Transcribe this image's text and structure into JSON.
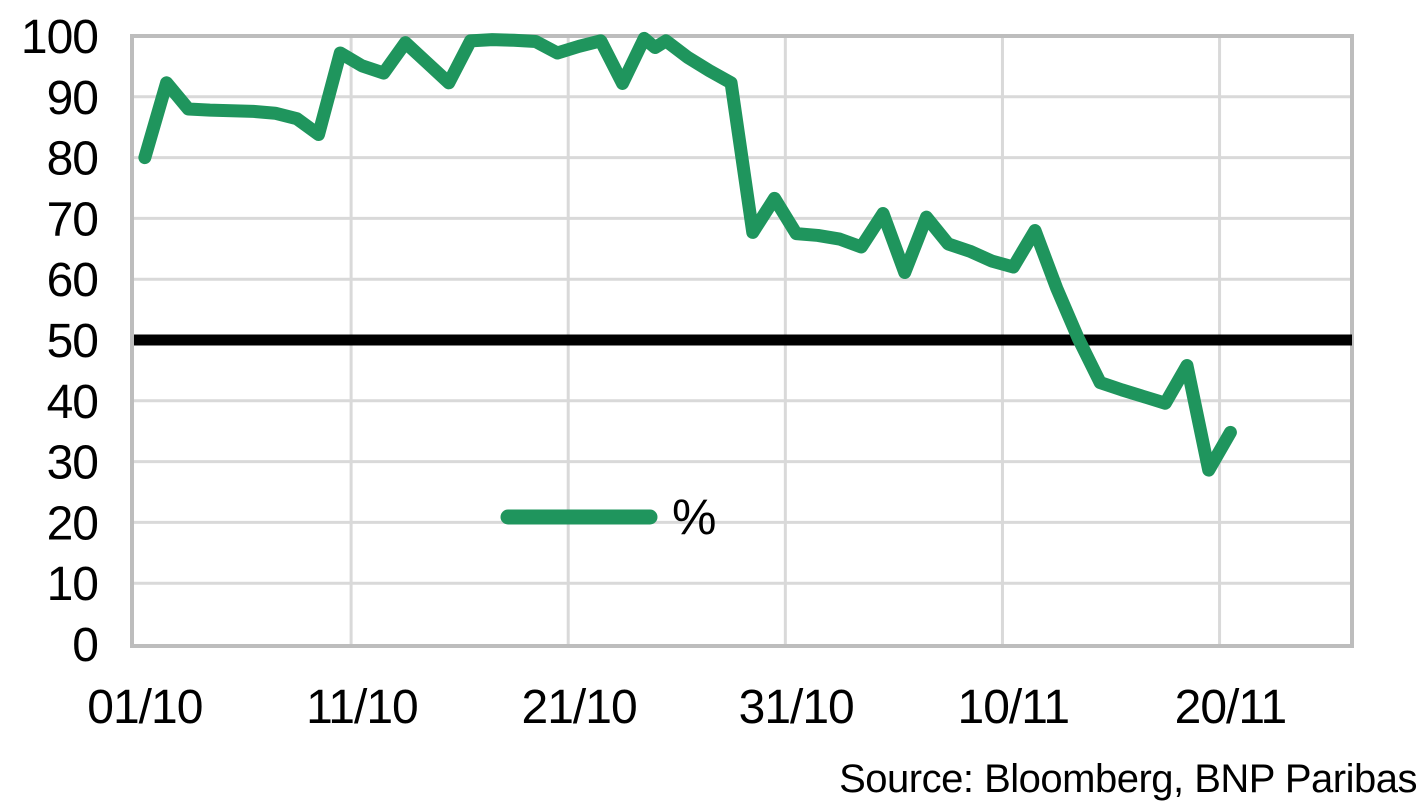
{
  "chart_data": {
    "type": "line",
    "title": "",
    "xlabel": "",
    "ylabel": "",
    "ylim": [
      0,
      100
    ],
    "xlim_days": [
      -0.5,
      55.6
    ],
    "y_ticks": [
      0,
      10,
      20,
      30,
      40,
      50,
      60,
      70,
      80,
      90,
      100
    ],
    "x_ticks": [
      {
        "day": 0,
        "label": "01/10"
      },
      {
        "day": 10,
        "label": "11/10"
      },
      {
        "day": 20,
        "label": "21/10"
      },
      {
        "day": 30,
        "label": "31/10"
      },
      {
        "day": 40,
        "label": "10/11"
      },
      {
        "day": 50,
        "label": "20/11"
      }
    ],
    "grid": true,
    "legend_position": "inside-bottom-center",
    "series": [
      {
        "name": "%",
        "color": "#1F955D",
        "points": [
          [
            0,
            80
          ],
          [
            1,
            92.3
          ],
          [
            2,
            88
          ],
          [
            3,
            87.8
          ],
          [
            4,
            87.7
          ],
          [
            5,
            87.6
          ],
          [
            6,
            87.3
          ],
          [
            7,
            86.4
          ],
          [
            8,
            83.8
          ],
          [
            9,
            97.2
          ],
          [
            10,
            95.1
          ],
          [
            11,
            93.9
          ],
          [
            12,
            98.9
          ],
          [
            13,
            95.6
          ],
          [
            14,
            92.3
          ],
          [
            15,
            99.2
          ],
          [
            16,
            99.4
          ],
          [
            17,
            99.3
          ],
          [
            18,
            99.1
          ],
          [
            19,
            97.2
          ],
          [
            20,
            98.3
          ],
          [
            21,
            99.2
          ],
          [
            22,
            92.2
          ],
          [
            23,
            99.6
          ],
          [
            23.5,
            98.1
          ],
          [
            24,
            99.2
          ],
          [
            25,
            96.5
          ],
          [
            26,
            94.3
          ],
          [
            27,
            92.3
          ],
          [
            28,
            67.7
          ],
          [
            29,
            73.3
          ],
          [
            30,
            67.5
          ],
          [
            31,
            67.2
          ],
          [
            32,
            66.6
          ],
          [
            33,
            65.3
          ],
          [
            34,
            70.8
          ],
          [
            35,
            61.1
          ],
          [
            36,
            70.2
          ],
          [
            37,
            65.8
          ],
          [
            38,
            64.6
          ],
          [
            39,
            63
          ],
          [
            40,
            62
          ],
          [
            41,
            68
          ],
          [
            42,
            58.5
          ],
          [
            43,
            50.2
          ],
          [
            44,
            43
          ],
          [
            45,
            41.8
          ],
          [
            46,
            40.7
          ],
          [
            47,
            39.6
          ],
          [
            48,
            45.8
          ],
          [
            49,
            28.6
          ],
          [
            50,
            34.8
          ]
        ]
      }
    ],
    "reference_line": {
      "value": 50
    },
    "source_note": "Source: Bloomberg, BNP Paribas"
  },
  "colors": {
    "series_green": "#1F955D",
    "reference_black": "#000000",
    "gridline_gray": "#D9D9D9",
    "border_gray": "#BDBDBD",
    "text_black": "#000000",
    "background": "#FFFFFF"
  }
}
